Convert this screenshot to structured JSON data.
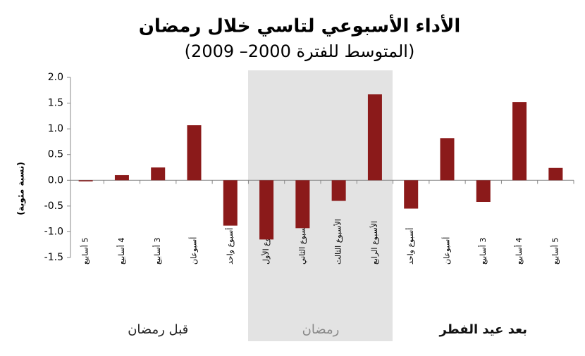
{
  "chart_data": {
    "type": "bar",
    "title": "الأداء الأسبوعي لتاسي خلال رمضان",
    "subtitle": "(المتوسط للفترة 2000– 2009)",
    "ylabel": "(نسبة مئوية)",
    "categories": [
      "5 أسابيع",
      "4 أسابيع",
      "3 أسابيع",
      "أسبوعان",
      "أسبوع واحد",
      "الأسبوع الأول",
      "الأسبوع الثاني",
      "الأسبوع الثالث",
      "الأسبوع الرابع",
      "أسبوع واحد",
      "أسبوعان",
      "3 أسابيع",
      "4 أسابيع",
      "5 أسابيع"
    ],
    "values": [
      -0.02,
      0.1,
      0.25,
      1.07,
      -0.88,
      -1.15,
      -0.93,
      -0.4,
      1.67,
      -0.55,
      0.82,
      -0.42,
      1.52,
      0.24
    ],
    "color": "#8b1a1a",
    "group_labels": [
      "قبل رمضان",
      "رمضان",
      "بعد عيد الفطر"
    ],
    "ylim": [
      -1.5,
      2
    ],
    "yticks": [
      {
        "value": 2,
        "label": "2.0"
      },
      1.5,
      {
        "value": 1,
        "label": "1.0"
      },
      0.5,
      {
        "value": 0,
        "label": "0.0"
      },
      -0.5,
      {
        "value": -1,
        "label": "-1.0"
      },
      -1.5
    ]
  }
}
